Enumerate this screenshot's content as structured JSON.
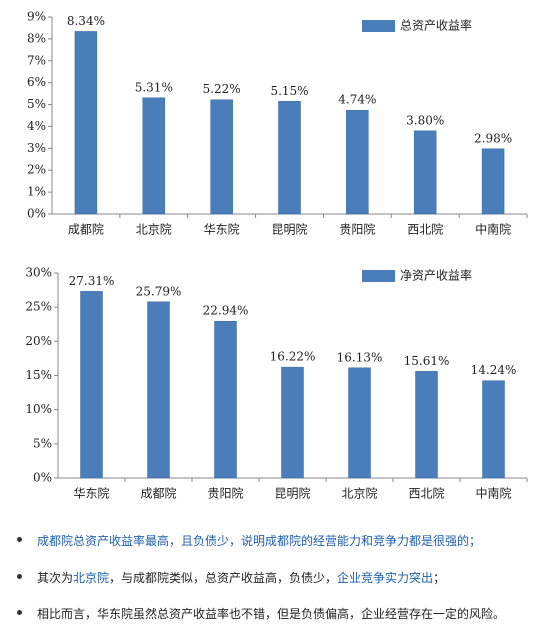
{
  "chart_data": [
    {
      "type": "bar",
      "categories": [
        "成都院",
        "北京院",
        "华东院",
        "昆明院",
        "贵阳院",
        "西北院",
        "中南院"
      ],
      "series": [
        {
          "name": "总资产收益率",
          "color": "#4a7ebb",
          "values": [
            8.34,
            5.31,
            5.22,
            5.15,
            4.74,
            3.8,
            2.98
          ],
          "value_labels": [
            "8.34%",
            "5.31%",
            "5.22%",
            "5.15%",
            "4.74%",
            "3.80%",
            "2.98%"
          ]
        }
      ],
      "ylim": [
        0,
        9
      ],
      "yticks": [
        {
          "value": 0,
          "label": "0%"
        },
        {
          "value": 1,
          "label": "1%"
        },
        {
          "value": 2,
          "label": "2%"
        },
        {
          "value": 3,
          "label": "3%"
        },
        {
          "value": 4,
          "label": "4%"
        },
        {
          "value": 5,
          "label": "5%"
        },
        {
          "value": 6,
          "label": "6%"
        },
        {
          "value": 7,
          "label": "7%"
        },
        {
          "value": 8,
          "label": "8%"
        },
        {
          "value": 9,
          "label": "9%"
        }
      ],
      "grid": false,
      "legend": "top-right"
    },
    {
      "type": "bar",
      "categories": [
        "华东院",
        "成都院",
        "贵阳院",
        "昆明院",
        "北京院",
        "西北院",
        "中南院"
      ],
      "series": [
        {
          "name": "净资产收益率",
          "color": "#4a7ebb",
          "values": [
            27.31,
            25.79,
            22.94,
            16.22,
            16.13,
            15.61,
            14.24
          ],
          "value_labels": [
            "27.31%",
            "25.79%",
            "22.94%",
            "16.22%",
            "16.13%",
            "15.61%",
            "14.24%"
          ]
        }
      ],
      "ylim": [
        0,
        30
      ],
      "yticks": [
        {
          "value": 0,
          "label": "0%"
        },
        {
          "value": 5,
          "label": "5%"
        },
        {
          "value": 10,
          "label": "10%"
        },
        {
          "value": 15,
          "label": "15%"
        },
        {
          "value": 20,
          "label": "20%"
        },
        {
          "value": 25,
          "label": "25%"
        },
        {
          "value": 30,
          "label": "30%"
        }
      ],
      "grid": false,
      "legend": "top-right"
    }
  ],
  "bullets": [
    [
      {
        "text": "成都院总资产收益率最高，且负债少，说明成都院的经营能力和竞争力都是很强的；",
        "color": "#1f5fa8"
      }
    ],
    [
      {
        "text": "其次为",
        "color": "#222222"
      },
      {
        "text": "北京院",
        "color": "#1f5fa8"
      },
      {
        "text": "，与成都院类似，总资产收益高，负债少，",
        "color": "#222222"
      },
      {
        "text": "企业竞争实力突出",
        "color": "#1f5fa8"
      },
      {
        "text": "；",
        "color": "#222222"
      }
    ],
    [
      {
        "text": "相比而言，华东院虽然总资产收益率也不错，但是负债偏高，企业经营存在一定的风险。",
        "color": "#222222"
      }
    ]
  ]
}
